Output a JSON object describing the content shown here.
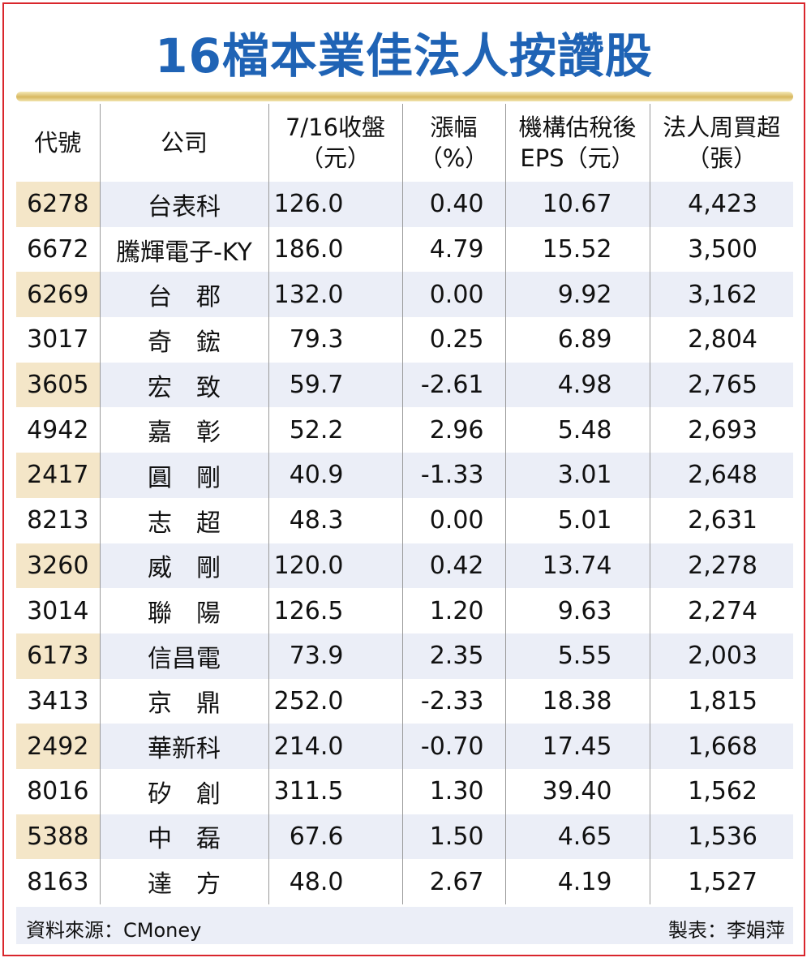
{
  "chart_data": {
    "type": "table",
    "title": "16檔本業佳法人按讚股",
    "columns": [
      "代號",
      "公司",
      "7/16收盤\n（元）",
      "漲幅\n（%）",
      "機構估稅後\nEPS（元）",
      "法人周買超\n（張）"
    ],
    "rows": [
      [
        "6278",
        "台表科",
        "126.0",
        "0.40",
        "10.67",
        "4,423"
      ],
      [
        "6672",
        "騰輝電子-KY",
        "186.0",
        "4.79",
        "15.52",
        "3,500"
      ],
      [
        "6269",
        "台　郡",
        "132.0",
        "0.00",
        "9.92",
        "3,162"
      ],
      [
        "3017",
        "奇　鋐",
        "79.3",
        "0.25",
        "6.89",
        "2,804"
      ],
      [
        "3605",
        "宏　致",
        "59.7",
        "-2.61",
        "4.98",
        "2,765"
      ],
      [
        "4942",
        "嘉　彰",
        "52.2",
        "2.96",
        "5.48",
        "2,693"
      ],
      [
        "2417",
        "圓　剛",
        "40.9",
        "-1.33",
        "3.01",
        "2,648"
      ],
      [
        "8213",
        "志　超",
        "48.3",
        "0.00",
        "5.01",
        "2,631"
      ],
      [
        "3260",
        "威　剛",
        "120.0",
        "0.42",
        "13.74",
        "2,278"
      ],
      [
        "3014",
        "聯　陽",
        "126.5",
        "1.20",
        "9.63",
        "2,274"
      ],
      [
        "6173",
        "信昌電",
        "73.9",
        "2.35",
        "5.55",
        "2,003"
      ],
      [
        "3413",
        "京　鼎",
        "252.0",
        "-2.33",
        "18.38",
        "1,815"
      ],
      [
        "2492",
        "華新科",
        "214.0",
        "-0.70",
        "17.45",
        "1,668"
      ],
      [
        "8016",
        "矽　創",
        "311.5",
        "1.30",
        "39.40",
        "1,562"
      ],
      [
        "5388",
        "中　磊",
        "67.6",
        "1.50",
        "4.65",
        "1,536"
      ],
      [
        "8163",
        "達　方",
        "48.0",
        "2.67",
        "4.19",
        "1,527"
      ]
    ]
  },
  "footer": {
    "source": "資料來源：CMoney",
    "author": "製表：李娟萍"
  },
  "colors": {
    "title": "#1f63b5",
    "border": "#d9262c",
    "stripe": "#ebeef7",
    "code_stripe": "#f4e6c8",
    "rule": "#d8b860"
  }
}
